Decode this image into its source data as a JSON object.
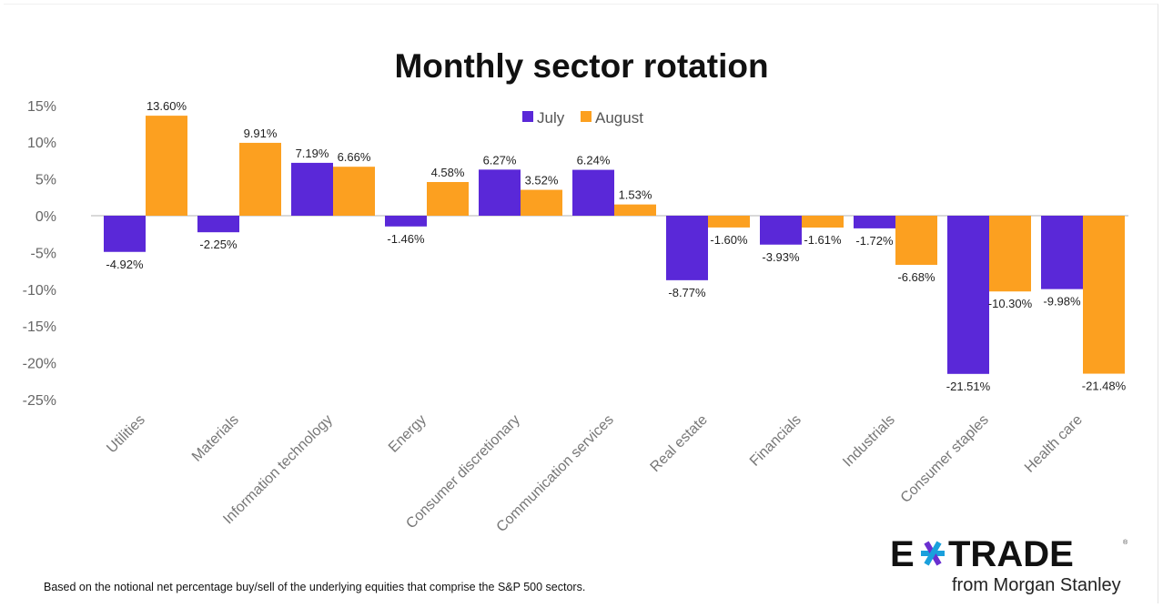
{
  "chart_data": {
    "type": "bar",
    "title": "Monthly sector rotation",
    "categories": [
      "Utilities",
      "Materials",
      "Information technology",
      "Energy",
      "Consumer discretionary",
      "Communication services",
      "Real estate",
      "Financials",
      "Industrials",
      "Consumer staples",
      "Health care"
    ],
    "series": [
      {
        "name": "July",
        "color": "#5a28d8",
        "values": [
          -4.92,
          -2.25,
          7.19,
          -1.46,
          6.27,
          6.24,
          -8.77,
          -3.93,
          -1.72,
          -21.51,
          -9.98
        ]
      },
      {
        "name": "August",
        "color": "#fca020",
        "values": [
          13.6,
          9.91,
          6.66,
          4.58,
          3.52,
          1.53,
          -1.6,
          -1.61,
          -6.68,
          -10.3,
          -21.48
        ]
      }
    ],
    "data_labels": {
      "July": [
        "-4.92%",
        "-2.25%",
        "7.19%",
        "-1.46%",
        "6.27%",
        "6.24%",
        "-8.77%",
        "-3.93%",
        "-1.72%",
        "-21.51%",
        "-9.98%"
      ],
      "August": [
        "13.60%",
        "9.91%",
        "6.66%",
        "4.58%",
        "3.52%",
        "1.53%",
        "-1.60%",
        "-1.61%",
        "-6.68%",
        "-10.30%",
        "-21.48%"
      ]
    },
    "yticks": [
      "15%",
      "10%",
      "5%",
      "0%",
      "-5%",
      "-10%",
      "-15%",
      "-20%",
      "-25%"
    ],
    "ylim": [
      -25,
      15
    ],
    "grid": false,
    "legend": "top-center"
  },
  "footnote": "Based on the notional net percentage buy/sell of the underlying equities that comprise the S&P 500 sectors.",
  "logo": {
    "brand": "E*TRADE",
    "sub": "from Morgan Stanley"
  }
}
